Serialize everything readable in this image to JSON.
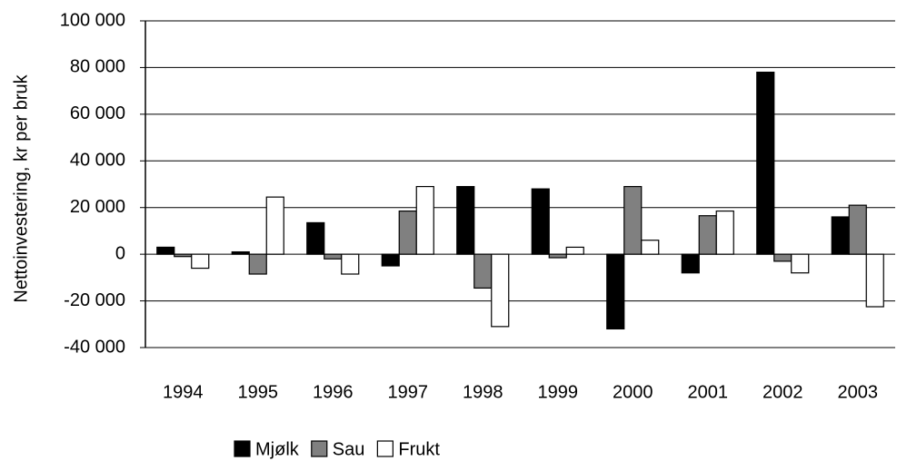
{
  "chart_data": {
    "type": "bar",
    "ylabel": "Nettoinvestering, kr per bruk",
    "categories": [
      "1994",
      "1995",
      "1996",
      "1997",
      "1998",
      "1999",
      "2000",
      "2001",
      "2002",
      "2003"
    ],
    "series": [
      {
        "name": "Mjølk",
        "color": "#000000",
        "values": [
          3000,
          1000,
          13500,
          -5000,
          29000,
          28000,
          -32000,
          -8000,
          78000,
          16000
        ]
      },
      {
        "name": "Sau",
        "color": "#808080",
        "values": [
          -1000,
          -8500,
          -2000,
          18500,
          -14500,
          -1500,
          29000,
          16500,
          -3000,
          21000
        ]
      },
      {
        "name": "Frukt",
        "color": "#ffffff",
        "values": [
          -6000,
          24500,
          -8500,
          29000,
          -31000,
          3000,
          6000,
          18500,
          -8000,
          -22500
        ]
      }
    ],
    "ylim": [
      -40000,
      100000
    ],
    "yticks": [
      {
        "value": -40000,
        "label": "-40 000"
      },
      {
        "value": -20000,
        "label": "-20 000"
      },
      0,
      {
        "value": 20000,
        "label": "20 000"
      },
      {
        "value": 40000,
        "label": "40 000"
      },
      {
        "value": 60000,
        "label": "60 000"
      },
      {
        "value": 80000,
        "label": "80 000"
      },
      {
        "value": 100000,
        "label": "100 000"
      }
    ],
    "grid": true,
    "legend": "bottom"
  }
}
